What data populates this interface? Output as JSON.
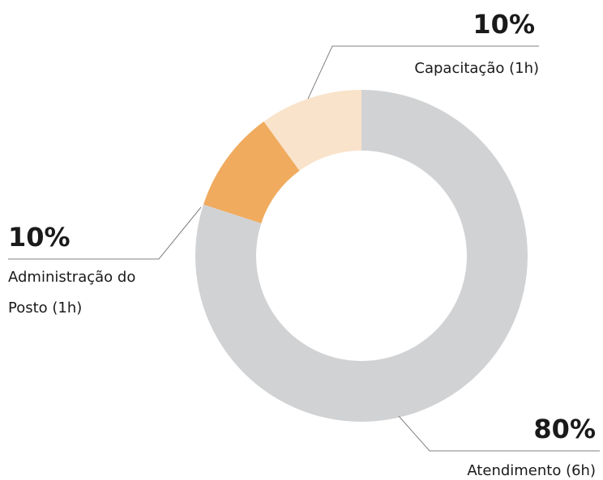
{
  "chart_data": {
    "type": "donut",
    "categories": [
      "Atendimento (6h)",
      "Administração do Posto (1h)",
      "Capacitação (1h)"
    ],
    "values": [
      80,
      10,
      10
    ],
    "value_labels": [
      "80%",
      "10%",
      "10%"
    ],
    "colors": [
      "#d1d2d4",
      "#f0ab5e",
      "#f9e3cb"
    ]
  }
}
